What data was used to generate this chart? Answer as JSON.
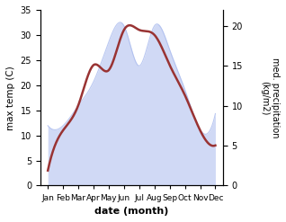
{
  "months": [
    "Jan",
    "Feb",
    "Mar",
    "Apr",
    "May",
    "Jun",
    "Jul",
    "Aug",
    "Sep",
    "Oct",
    "Nov",
    "Dec"
  ],
  "x": [
    1,
    2,
    3,
    4,
    5,
    6,
    7,
    8,
    9,
    10,
    11,
    12
  ],
  "temperature": [
    3,
    11,
    16,
    24,
    23,
    31,
    31,
    30,
    24,
    18,
    11,
    8
  ],
  "precipitation": [
    7.5,
    7.5,
    10,
    13,
    18,
    20,
    15,
    20,
    17,
    12,
    7,
    9
  ],
  "temp_color": "#993333",
  "precip_color": "#aabbee",
  "precip_fill_alpha": 0.55,
  "temp_ylim": [
    0,
    35
  ],
  "precip_ylim": [
    0,
    22
  ],
  "precip_yticks": [
    0,
    5,
    10,
    15,
    20
  ],
  "temp_yticks": [
    0,
    5,
    10,
    15,
    20,
    25,
    30,
    35
  ],
  "xlim": [
    0.5,
    12.5
  ],
  "xlabel": "date (month)",
  "ylabel_left": "max temp (C)",
  "ylabel_right": "med. precipitation\n(kg/m2)",
  "background_color": "#ffffff"
}
